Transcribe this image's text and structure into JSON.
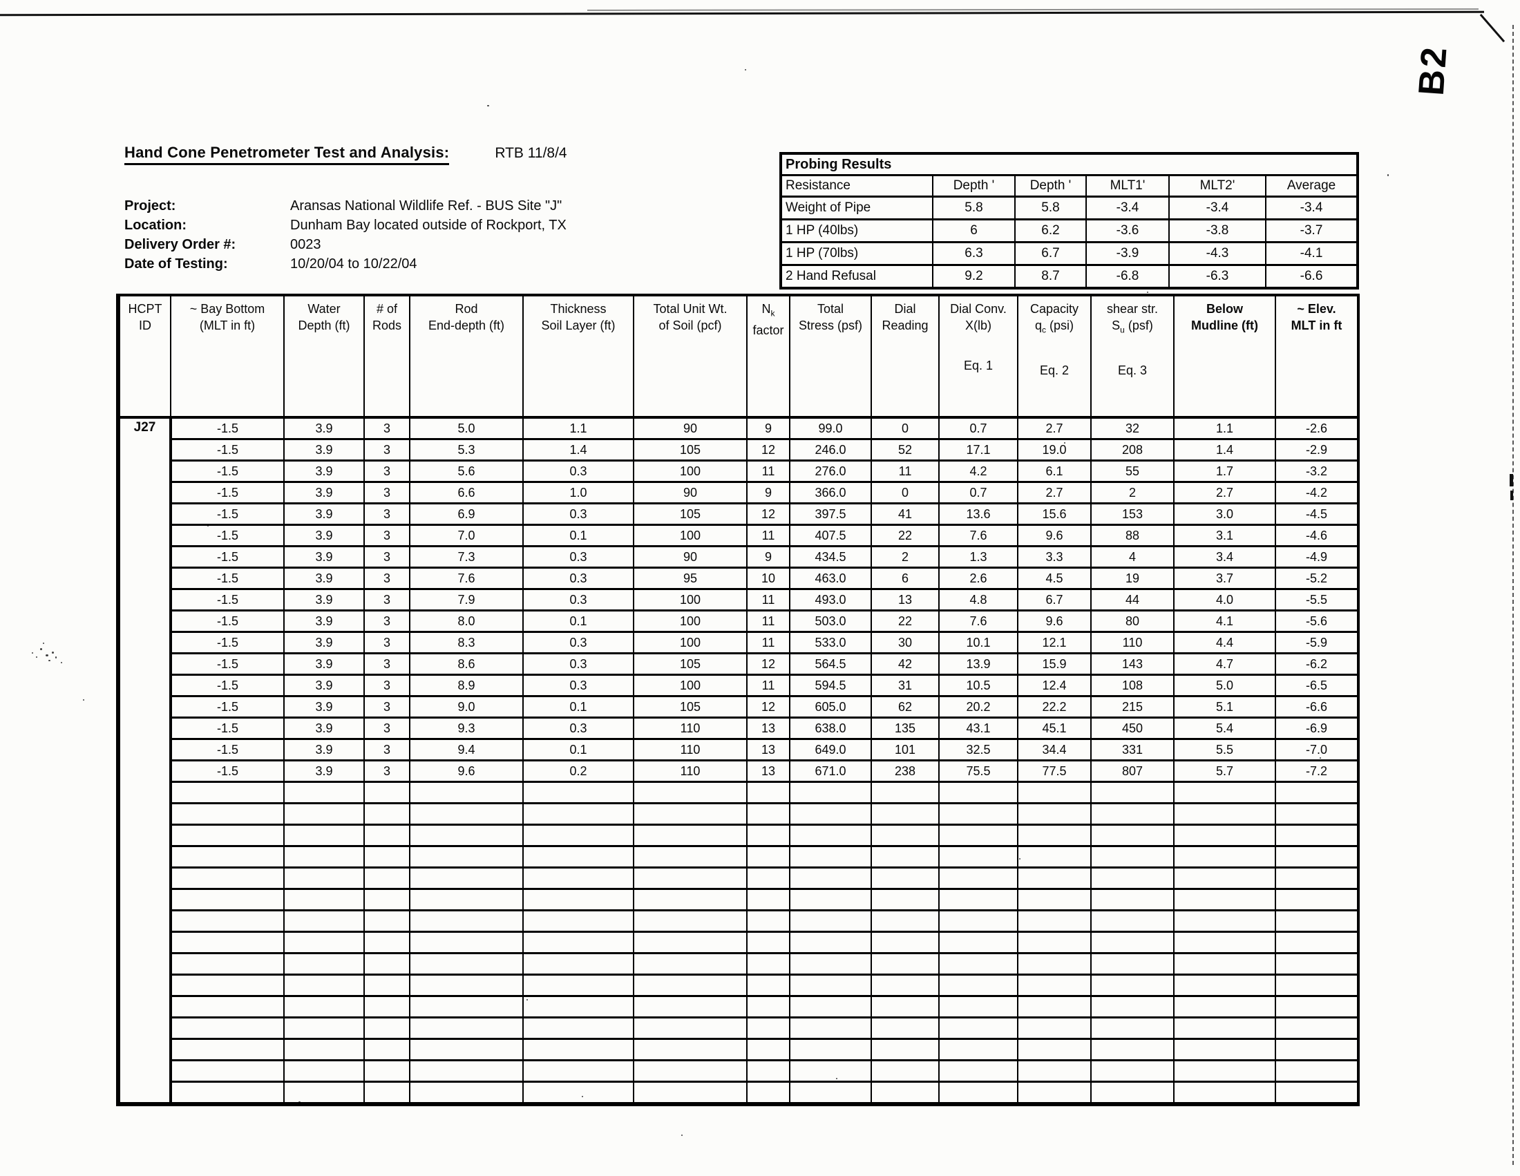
{
  "annotations": {
    "handwritten_mark": "B2"
  },
  "header": {
    "title": "Hand Cone Penetrometer Test and Analysis:",
    "reference": "RTB 11/8/4",
    "info": [
      {
        "label": "Project:",
        "value": "Aransas National Wildlife Ref. - BUS Site \"J\""
      },
      {
        "label": "Location:",
        "value": "Dunham Bay located outside of Rockport, TX"
      },
      {
        "label": "Delivery Order #:",
        "value": "0023"
      },
      {
        "label": "Date of Testing:",
        "value": "10/20/04 to 10/22/04"
      }
    ]
  },
  "probing_results": {
    "title": "Probing Results",
    "columns": [
      "Resistance",
      "Depth '",
      "Depth '",
      "MLT1'",
      "MLT2'",
      "Average"
    ],
    "rows": [
      [
        "Weight of Pipe",
        "5.8",
        "5.8",
        "-3.4",
        "-3.4",
        "-3.4"
      ],
      [
        "1 HP (40lbs)",
        "6",
        "6.2",
        "-3.6",
        "-3.8",
        "-3.7"
      ],
      [
        "1 HP (70lbs)",
        "6.3",
        "6.7",
        "-3.9",
        "-4.3",
        "-4.1"
      ],
      [
        "2 Hand Refusal",
        "9.2",
        "8.7",
        "-6.8",
        "-6.3",
        "-6.6"
      ]
    ]
  },
  "main_table": {
    "headers": [
      {
        "lines": [
          {
            "t": "HCPT"
          },
          {
            "t": "ID"
          }
        ]
      },
      {
        "lines": [
          {
            "t": "~ Bay Bottom"
          },
          {
            "t": "(MLT in ft)"
          }
        ]
      },
      {
        "lines": [
          {
            "t": "Water"
          },
          {
            "t": "Depth (ft)"
          }
        ]
      },
      {
        "lines": [
          {
            "t": "# of"
          },
          {
            "t": "Rods"
          }
        ]
      },
      {
        "lines": [
          {
            "t": "Rod"
          },
          {
            "t": "End-depth (ft)"
          }
        ]
      },
      {
        "lines": [
          {
            "t": "Thickness"
          },
          {
            "t": "Soil Layer (ft)"
          }
        ]
      },
      {
        "lines": [
          {
            "t": "Total Unit Wt."
          },
          {
            "t": "of Soil (pcf)"
          }
        ]
      },
      {
        "lines": [
          {
            "t": "N",
            "sub": "k"
          },
          {
            "t": "factor"
          }
        ]
      },
      {
        "lines": [
          {
            "t": "Total"
          },
          {
            "t": "Stress (psf)"
          }
        ]
      },
      {
        "lines": [
          {
            "t": "Dial"
          },
          {
            "t": "Reading"
          }
        ]
      },
      {
        "lines": [
          {
            "t": "Dial Conv."
          },
          {
            "t": "X(lb)"
          }
        ],
        "eq": "Eq. 1"
      },
      {
        "lines": [
          {
            "t": "Capacity"
          },
          {
            "t": "q",
            "sub": "c",
            "post": " (psi)"
          }
        ],
        "eq": "Eq. 2"
      },
      {
        "lines": [
          {
            "t": "shear str."
          },
          {
            "t": "S",
            "sub": "u",
            "post": " (psf)"
          }
        ],
        "eq": "Eq. 3"
      },
      {
        "lines": [
          {
            "t": "Below"
          },
          {
            "t": "Mudline (ft)"
          }
        ],
        "bold": true
      },
      {
        "lines": [
          {
            "t": "~ Elev."
          },
          {
            "t": "MLT in ft"
          }
        ],
        "bold": true
      }
    ],
    "hcpt_id": "J27",
    "rows": [
      [
        "-1.5",
        "3.9",
        "3",
        "5.0",
        "1.1",
        "90",
        "9",
        "99.0",
        "0",
        "0.7",
        "2.7",
        "32",
        "1.1",
        "-2.6"
      ],
      [
        "-1.5",
        "3.9",
        "3",
        "5.3",
        "1.4",
        "105",
        "12",
        "246.0",
        "52",
        "17.1",
        "19.0",
        "208",
        "1.4",
        "-2.9"
      ],
      [
        "-1.5",
        "3.9",
        "3",
        "5.6",
        "0.3",
        "100",
        "11",
        "276.0",
        "11",
        "4.2",
        "6.1",
        "55",
        "1.7",
        "-3.2"
      ],
      [
        "-1.5",
        "3.9",
        "3",
        "6.6",
        "1.0",
        "90",
        "9",
        "366.0",
        "0",
        "0.7",
        "2.7",
        "2",
        "2.7",
        "-4.2"
      ],
      [
        "-1.5",
        "3.9",
        "3",
        "6.9",
        "0.3",
        "105",
        "12",
        "397.5",
        "41",
        "13.6",
        "15.6",
        "153",
        "3.0",
        "-4.5"
      ],
      [
        "-1.5",
        "3.9",
        "3",
        "7.0",
        "0.1",
        "100",
        "11",
        "407.5",
        "22",
        "7.6",
        "9.6",
        "88",
        "3.1",
        "-4.6"
      ],
      [
        "-1.5",
        "3.9",
        "3",
        "7.3",
        "0.3",
        "90",
        "9",
        "434.5",
        "2",
        "1.3",
        "3.3",
        "4",
        "3.4",
        "-4.9"
      ],
      [
        "-1.5",
        "3.9",
        "3",
        "7.6",
        "0.3",
        "95",
        "10",
        "463.0",
        "6",
        "2.6",
        "4.5",
        "19",
        "3.7",
        "-5.2"
      ],
      [
        "-1.5",
        "3.9",
        "3",
        "7.9",
        "0.3",
        "100",
        "11",
        "493.0",
        "13",
        "4.8",
        "6.7",
        "44",
        "4.0",
        "-5.5"
      ],
      [
        "-1.5",
        "3.9",
        "3",
        "8.0",
        "0.1",
        "100",
        "11",
        "503.0",
        "22",
        "7.6",
        "9.6",
        "80",
        "4.1",
        "-5.6"
      ],
      [
        "-1.5",
        "3.9",
        "3",
        "8.3",
        "0.3",
        "100",
        "11",
        "533.0",
        "30",
        "10.1",
        "12.1",
        "110",
        "4.4",
        "-5.9"
      ],
      [
        "-1.5",
        "3.9",
        "3",
        "8.6",
        "0.3",
        "105",
        "12",
        "564.5",
        "42",
        "13.9",
        "15.9",
        "143",
        "4.7",
        "-6.2"
      ],
      [
        "-1.5",
        "3.9",
        "3",
        "8.9",
        "0.3",
        "100",
        "11",
        "594.5",
        "31",
        "10.5",
        "12.4",
        "108",
        "5.0",
        "-6.5"
      ],
      [
        "-1.5",
        "3.9",
        "3",
        "9.0",
        "0.1",
        "105",
        "12",
        "605.0",
        "62",
        "20.2",
        "22.2",
        "215",
        "5.1",
        "-6.6"
      ],
      [
        "-1.5",
        "3.9",
        "3",
        "9.3",
        "0.3",
        "110",
        "13",
        "638.0",
        "135",
        "43.1",
        "45.1",
        "450",
        "5.4",
        "-6.9"
      ],
      [
        "-1.5",
        "3.9",
        "3",
        "9.4",
        "0.1",
        "110",
        "13",
        "649.0",
        "101",
        "32.5",
        "34.4",
        "331",
        "5.5",
        "-7.0"
      ],
      [
        "-1.5",
        "3.9",
        "3",
        "9.6",
        "0.2",
        "110",
        "13",
        "671.0",
        "238",
        "75.5",
        "77.5",
        "807",
        "5.7",
        "-7.2"
      ]
    ],
    "empty_row_count": 15
  }
}
